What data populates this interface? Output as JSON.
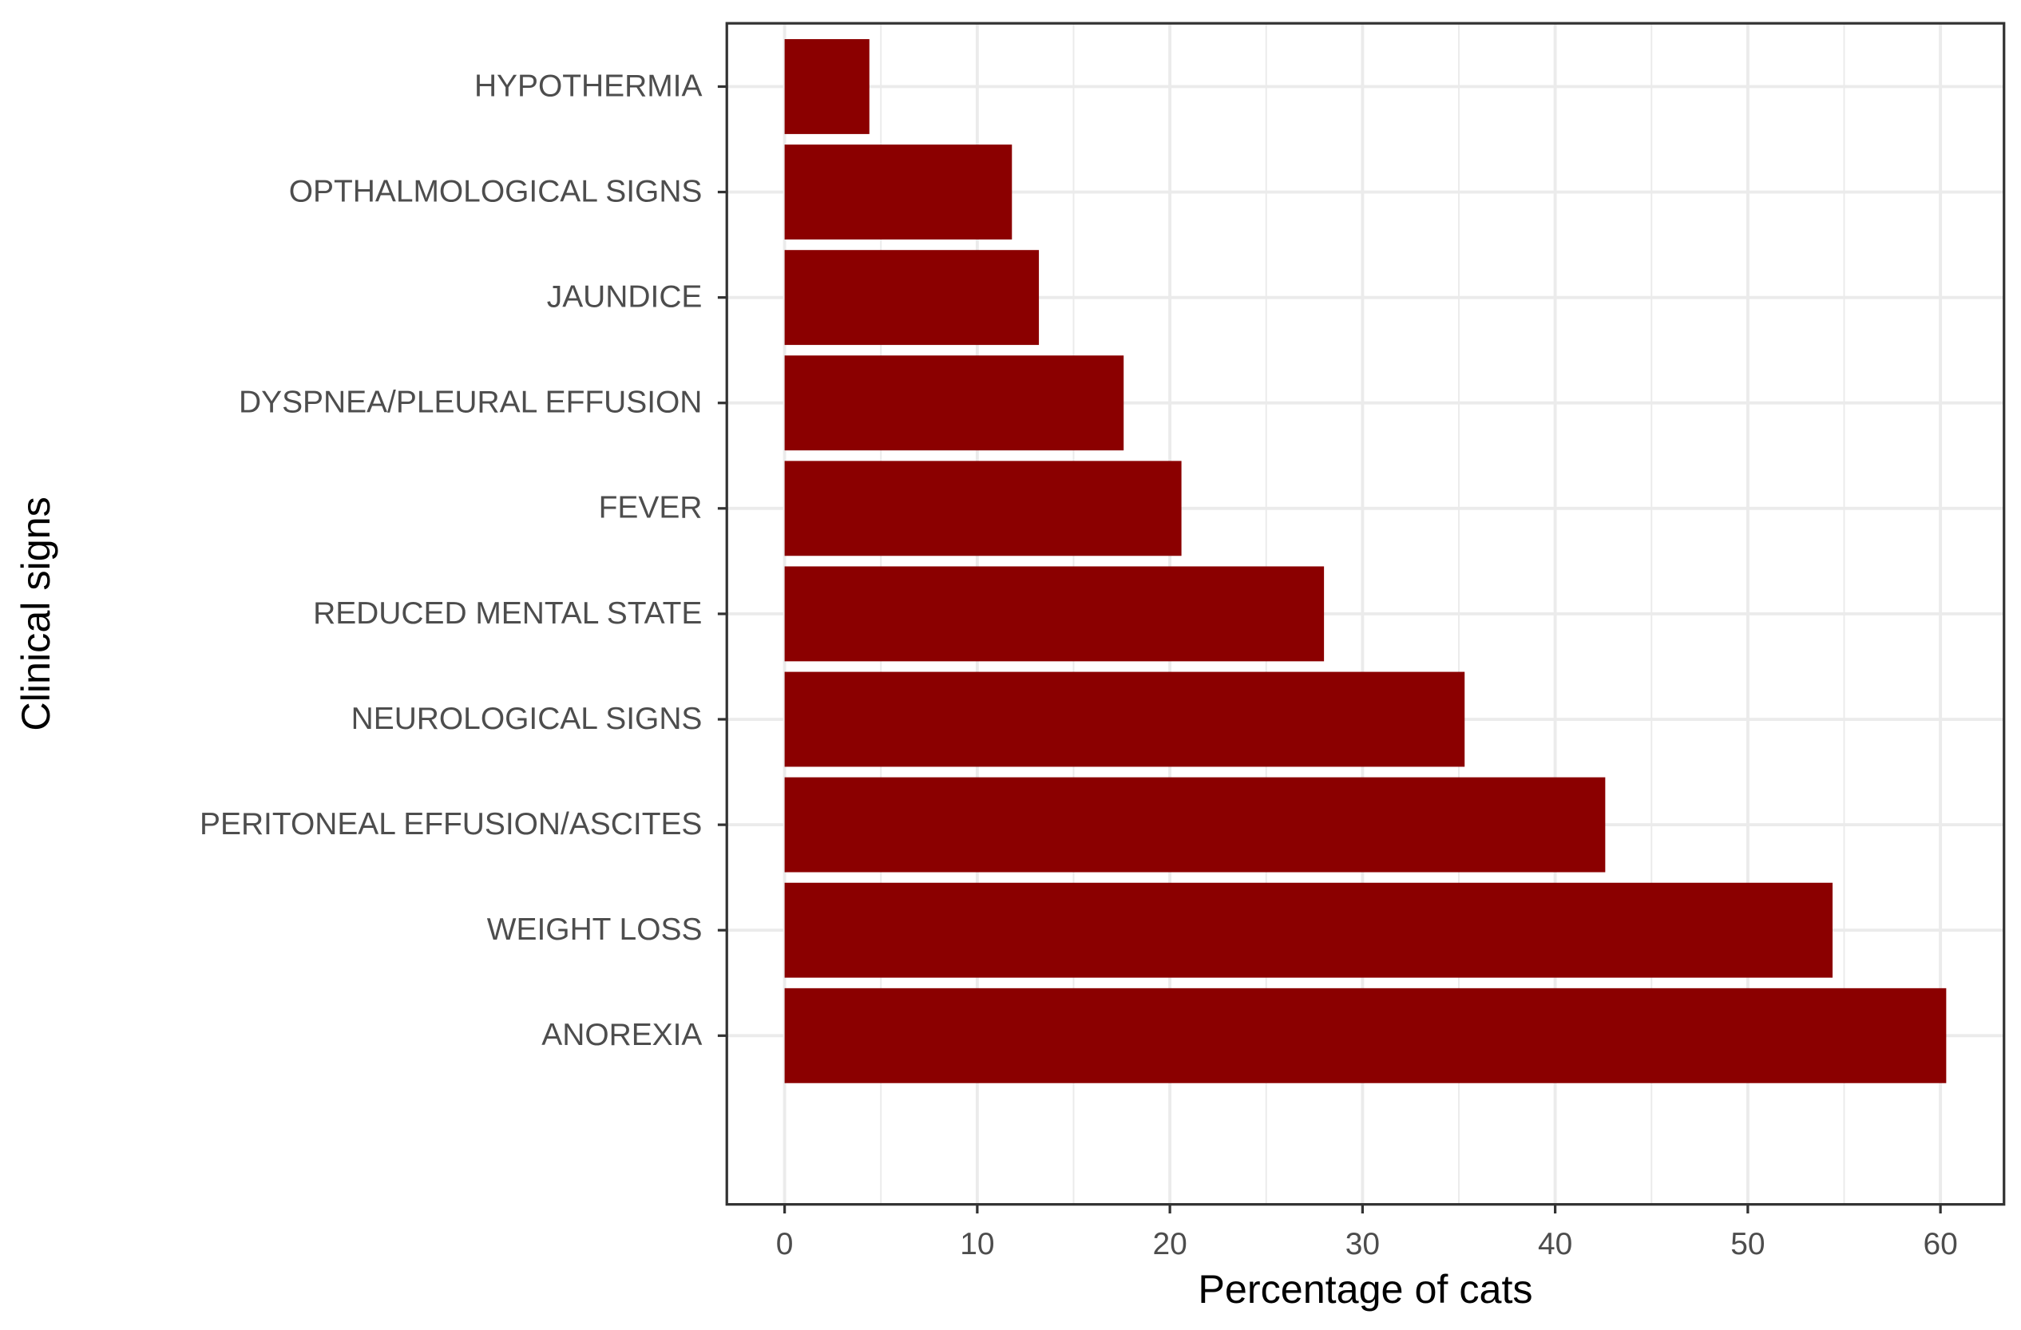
{
  "chart_data": {
    "type": "barh",
    "x_label": "Percentage of cats",
    "y_label": "Clinical signs",
    "categories": [
      "HYPOTHERMIA",
      "OPTHALMOLOGICAL SIGNS",
      "JAUNDICE",
      "DYSPNEA/PLEURAL EFFUSION",
      "FEVER",
      "REDUCED MENTAL STATE",
      "NEUROLOGICAL SIGNS",
      "PERITONEAL EFFUSION/ASCITES",
      "WEIGHT LOSS",
      "ANOREXIA"
    ],
    "values": [
      4.4,
      11.8,
      13.2,
      17.6,
      20.6,
      28.0,
      35.3,
      42.6,
      54.4,
      60.3
    ],
    "color": "#8b0000",
    "xlim": [
      -3.0,
      63.3
    ],
    "xticks": [
      0,
      10,
      20,
      30,
      40,
      50,
      60
    ],
    "x_minor_grid": [
      5,
      15,
      25,
      35,
      45,
      55
    ],
    "grid": true
  }
}
